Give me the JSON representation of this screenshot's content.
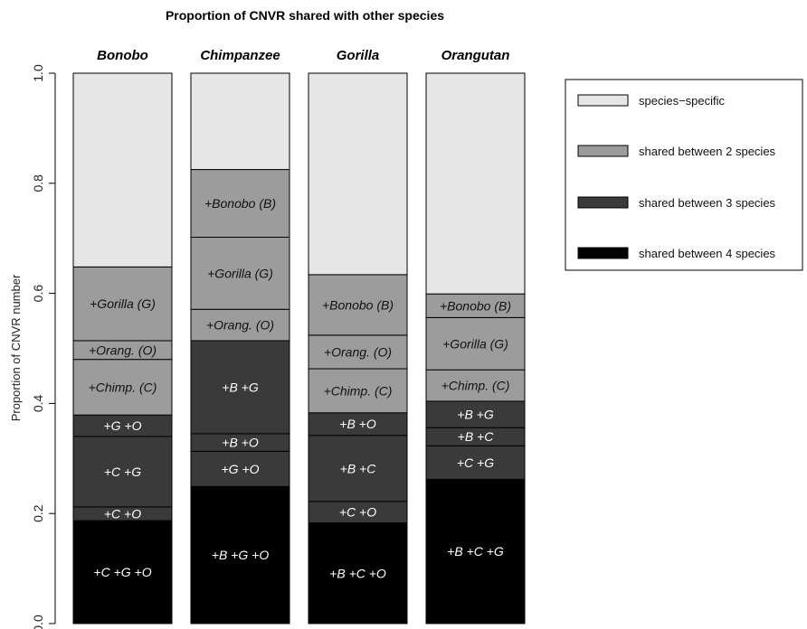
{
  "chart_data": {
    "type": "bar",
    "stacked": true,
    "title": "Proportion of CNVR shared with other species",
    "xlabel": "",
    "ylabel": "Proportion of CNVR number",
    "ylim": [
      0,
      1
    ],
    "yticks": [
      {
        "value": 0.0,
        "label": "0.0"
      },
      {
        "value": 0.2,
        "label": "0.2"
      },
      {
        "value": 0.4,
        "label": "0.4"
      },
      {
        "value": 0.6,
        "label": "0.6"
      },
      {
        "value": 0.8,
        "label": "0.8"
      },
      {
        "value": 1.0,
        "label": "1.0"
      }
    ],
    "categories": [
      "Bonobo",
      "Chimpanzee",
      "Gorilla",
      "Orangutan"
    ],
    "colors": {
      "species_specific": "#e6e6e6",
      "shared2": "#9c9c9c",
      "shared3": "#3a3a3a",
      "shared4": "#000000"
    },
    "legend": {
      "position": "top-right",
      "entries": [
        {
          "label": "species−specific",
          "group": "species_specific"
        },
        {
          "label": "shared between 2 species",
          "group": "shared2"
        },
        {
          "label": "shared between 3 species",
          "group": "shared3"
        },
        {
          "label": "shared between 4 species",
          "group": "shared4"
        }
      ]
    },
    "bars": [
      {
        "species": "Bonobo",
        "segments": [
          {
            "label": "+C +G +O",
            "value": 0.187,
            "group": "shared4"
          },
          {
            "label": "+C +O",
            "value": 0.025,
            "group": "shared3"
          },
          {
            "label": "+C +G",
            "value": 0.128,
            "group": "shared3"
          },
          {
            "label": "+G +O",
            "value": 0.039,
            "group": "shared3"
          },
          {
            "label": "+Chimp. (C)",
            "value": 0.101,
            "group": "shared2"
          },
          {
            "label": "+Orang. (O)",
            "value": 0.034,
            "group": "shared2"
          },
          {
            "label": "+Gorilla (G)",
            "value": 0.134,
            "group": "shared2"
          },
          {
            "label": "",
            "value": 0.352,
            "group": "species_specific"
          }
        ]
      },
      {
        "species": "Chimpanzee",
        "segments": [
          {
            "label": "+B +G +O",
            "value": 0.249,
            "group": "shared4"
          },
          {
            "label": "+G +O",
            "value": 0.064,
            "group": "shared3"
          },
          {
            "label": "+B +O",
            "value": 0.032,
            "group": "shared3"
          },
          {
            "label": "+B +G",
            "value": 0.169,
            "group": "shared3"
          },
          {
            "label": "+Orang. (O)",
            "value": 0.057,
            "group": "shared2"
          },
          {
            "label": "+Gorilla (G)",
            "value": 0.131,
            "group": "shared2"
          },
          {
            "label": "+Bonobo (B)",
            "value": 0.123,
            "group": "shared2"
          },
          {
            "label": "",
            "value": 0.175,
            "group": "species_specific"
          }
        ]
      },
      {
        "species": "Gorilla",
        "segments": [
          {
            "label": "+B +C +O",
            "value": 0.183,
            "group": "shared4"
          },
          {
            "label": "+C +O",
            "value": 0.039,
            "group": "shared3"
          },
          {
            "label": "+B +C",
            "value": 0.12,
            "group": "shared3"
          },
          {
            "label": "+B +O",
            "value": 0.041,
            "group": "shared3"
          },
          {
            "label": "+Chimp. (C)",
            "value": 0.08,
            "group": "shared2"
          },
          {
            "label": "+Orang. (O)",
            "value": 0.061,
            "group": "shared2"
          },
          {
            "label": "+Bonobo (B)",
            "value": 0.11,
            "group": "shared2"
          },
          {
            "label": "",
            "value": 0.366,
            "group": "species_specific"
          }
        ]
      },
      {
        "species": "Orangutan",
        "segments": [
          {
            "label": "+B +C +G",
            "value": 0.262,
            "group": "shared4"
          },
          {
            "label": "+C +G",
            "value": 0.061,
            "group": "shared3"
          },
          {
            "label": "+B +C",
            "value": 0.033,
            "group": "shared3"
          },
          {
            "label": "+B +G",
            "value": 0.048,
            "group": "shared3"
          },
          {
            "label": "+Chimp. (C)",
            "value": 0.057,
            "group": "shared2"
          },
          {
            "label": "+Gorilla (G)",
            "value": 0.095,
            "group": "shared2"
          },
          {
            "label": "+Bonobo (B)",
            "value": 0.043,
            "group": "shared2"
          },
          {
            "label": "",
            "value": 0.401,
            "group": "species_specific"
          }
        ]
      }
    ]
  }
}
